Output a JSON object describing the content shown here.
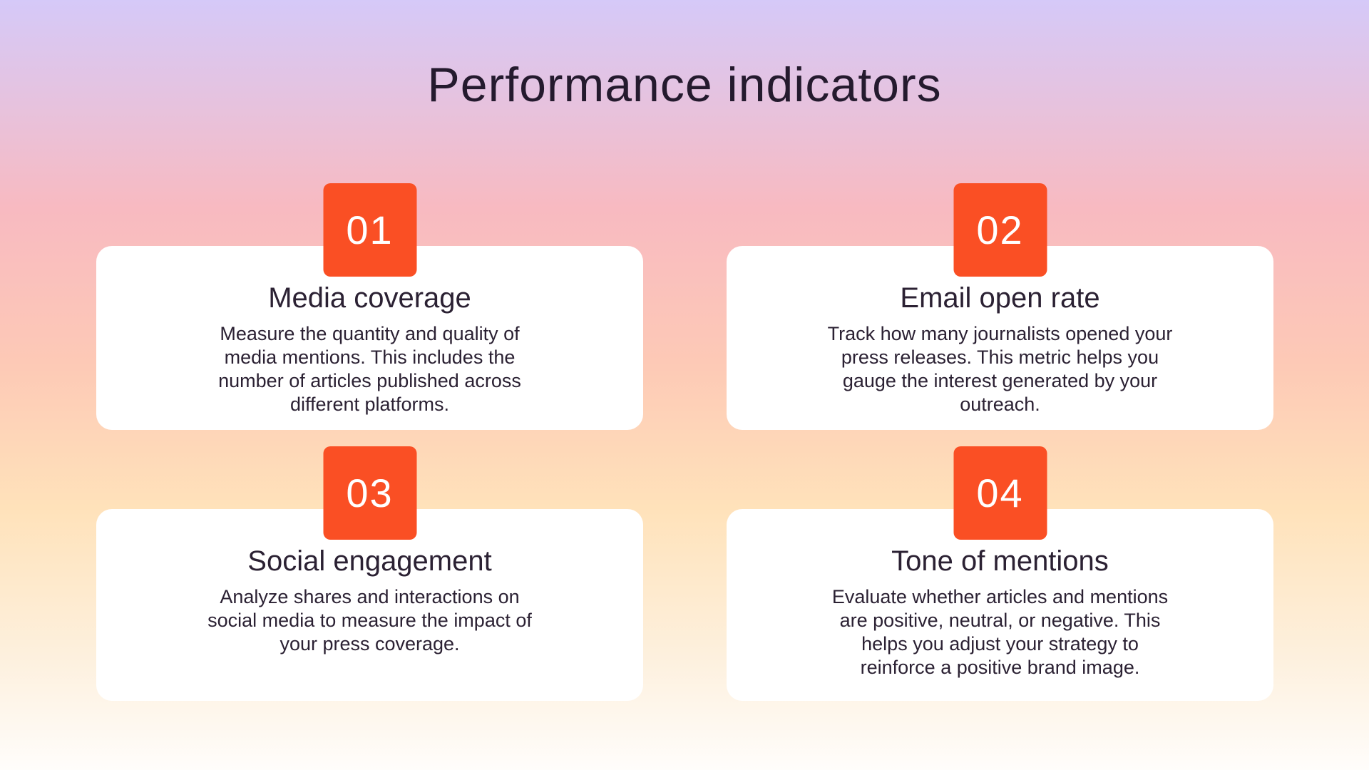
{
  "title": "Performance indicators",
  "theme": {
    "badge_color": "#FA4F24",
    "title_color": "#241A2E",
    "text_color": "#2B2133",
    "card_background": "#FFFFFF",
    "background_gradient": [
      "#D5C9F8",
      "#F8BAC1",
      "#FDC9B6",
      "#FFE2BA",
      "#FFFDFB"
    ]
  },
  "cards": [
    {
      "number": "01",
      "heading": "Media coverage",
      "description": "Measure the quantity and quality of media mentions. This includes the number of articles published across different platforms."
    },
    {
      "number": "02",
      "heading": "Email open rate",
      "description": "Track how many journalists opened your press releases. This metric helps you gauge the interest generated by your outreach."
    },
    {
      "number": "03",
      "heading": "Social engagement",
      "description": "Analyze shares and interactions on social media to measure the impact of your press coverage."
    },
    {
      "number": "04",
      "heading": "Tone of mentions",
      "description": "Evaluate whether articles and mentions are positive, neutral, or negative. This helps you adjust your strategy to reinforce a positive brand image."
    }
  ]
}
